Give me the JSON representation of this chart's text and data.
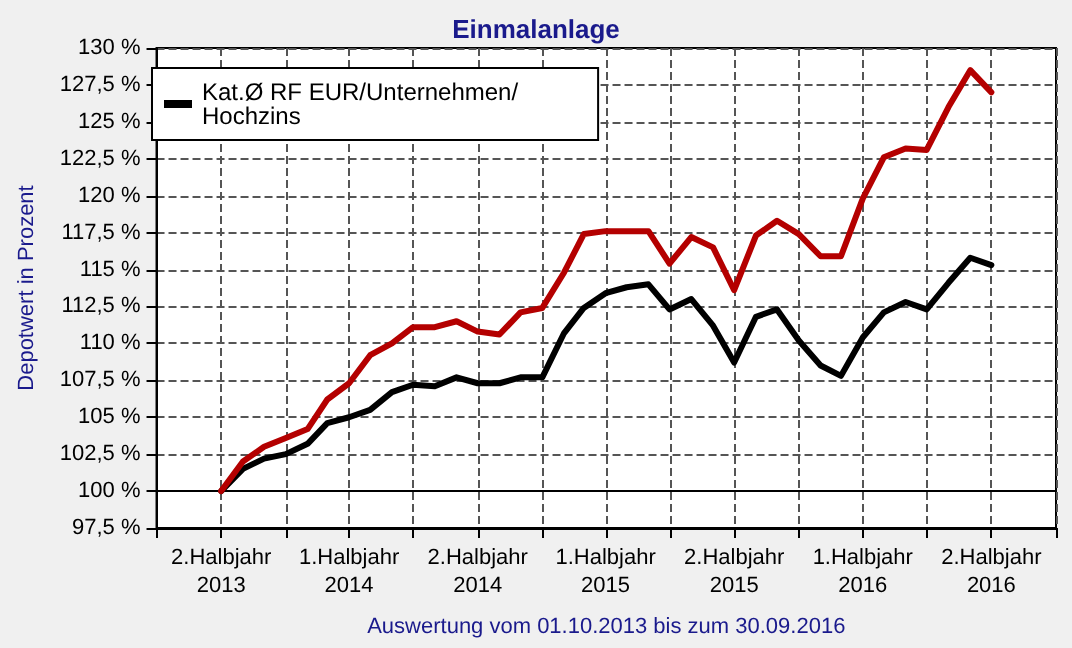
{
  "chart_data": {
    "type": "line",
    "title": "Einmalanlage",
    "ylabel": "Depotwert in Prozent",
    "xlabel": "Auswertung vom 01.10.2013 bis zum 30.09.2016",
    "x": [
      "2013-10",
      "2013-11",
      "2013-12",
      "2014-01",
      "2014-02",
      "2014-03",
      "2014-04",
      "2014-05",
      "2014-06",
      "2014-07",
      "2014-08",
      "2014-09",
      "2014-10",
      "2014-11",
      "2014-12",
      "2015-01",
      "2015-02",
      "2015-03",
      "2015-04",
      "2015-05",
      "2015-06",
      "2015-07",
      "2015-08",
      "2015-09",
      "2015-10",
      "2015-11",
      "2015-12",
      "2016-01",
      "2016-02",
      "2016-03",
      "2016-04",
      "2016-05",
      "2016-06",
      "2016-07",
      "2016-08",
      "2016-09",
      "2016-10"
    ],
    "series": [
      {
        "color": "#b40000",
        "values": [
          100,
          102.0,
          103.0,
          103.6,
          104.2,
          106.2,
          107.3,
          109.2,
          110.0,
          111.1,
          111.1,
          111.5,
          110.8,
          110.6,
          112.1,
          112.4,
          114.8,
          117.4,
          117.6,
          117.6,
          117.6,
          115.4,
          117.2,
          116.5,
          113.6,
          117.3,
          118.3,
          117.4,
          115.9,
          115.9,
          119.8,
          122.6,
          123.2,
          123.1,
          126.0,
          128.5,
          127.0
        ]
      },
      {
        "name": "Kat.Ø RF EUR/Unternehmen/\nHochzins",
        "color": "#000000",
        "values": [
          100,
          101.5,
          102.2,
          102.5,
          103.2,
          104.6,
          105.0,
          105.5,
          106.7,
          107.2,
          107.1,
          107.7,
          107.3,
          107.3,
          107.7,
          107.7,
          110.7,
          112.4,
          113.4,
          113.8,
          114.0,
          112.3,
          113.0,
          111.2,
          108.7,
          111.8,
          112.3,
          110.2,
          108.5,
          107.8,
          110.4,
          112.1,
          112.8,
          112.3,
          114.1,
          115.8,
          115.3
        ]
      }
    ],
    "xlim": [
      "2013-07-01",
      "2017-01-01"
    ],
    "xticks": [
      {
        "value": "2013-07-01",
        "label": null
      },
      {
        "value": "2013-10-01",
        "label": "2.Halbjahr\n2013"
      },
      {
        "value": "2014-01-01",
        "label": null
      },
      {
        "value": "2014-04-01",
        "label": "1.Halbjahr\n2014"
      },
      {
        "value": "2014-07-01",
        "label": null
      },
      {
        "value": "2014-10-01",
        "label": "2.Halbjahr\n2014"
      },
      {
        "value": "2015-01-01",
        "label": null
      },
      {
        "value": "2015-04-01",
        "label": "1.Halbjahr\n2015"
      },
      {
        "value": "2015-07-01",
        "label": null
      },
      {
        "value": "2015-10-01",
        "label": "2.Halbjahr\n2015"
      },
      {
        "value": "2016-01-01",
        "label": null
      },
      {
        "value": "2016-04-01",
        "label": "1.Halbjahr\n2016"
      },
      {
        "value": "2016-07-01",
        "label": null
      },
      {
        "value": "2016-10-01",
        "label": "2.Halbjahr\n2016"
      },
      {
        "value": "2017-01-01",
        "label": null
      }
    ],
    "ylim": [
      97.5,
      130
    ],
    "yticks": [
      {
        "value": 97.5,
        "label": "97,5 %"
      },
      {
        "value": 100,
        "label": "100 %"
      },
      {
        "value": 102.5,
        "label": "102,5 %"
      },
      {
        "value": 105,
        "label": "105 %"
      },
      {
        "value": 107.5,
        "label": "107,5 %"
      },
      {
        "value": 110,
        "label": "110 %"
      },
      {
        "value": 112.5,
        "label": "112,5 %"
      },
      {
        "value": 115,
        "label": "115 %"
      },
      {
        "value": 117.5,
        "label": "117,5 %"
      },
      {
        "value": 120,
        "label": "120 %"
      },
      {
        "value": 122.5,
        "label": "122,5 %"
      },
      {
        "value": 125,
        "label": "125 %"
      },
      {
        "value": 127.5,
        "label": "127,5 %"
      },
      {
        "value": 130,
        "label": "130 %"
      }
    ],
    "ref_lines": [
      {
        "axis": "y",
        "value": 100,
        "color": "#000000"
      }
    ],
    "grid": true,
    "legend": "top left",
    "marker": "none",
    "line_style": "solid"
  }
}
